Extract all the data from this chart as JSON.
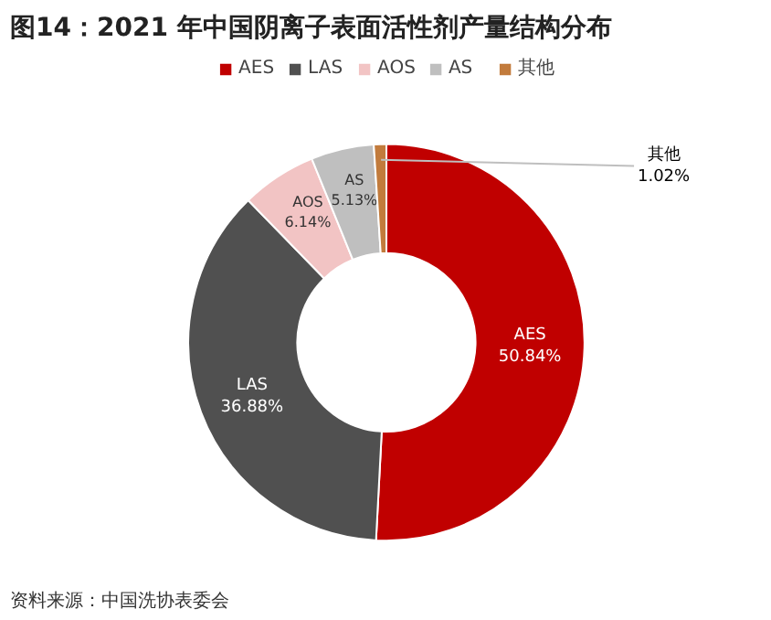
{
  "chart_data": {
    "type": "donut",
    "title": "图14：2021 年中国阴离子表面活性剂产量结构分布",
    "categories": [
      "AES",
      "LAS",
      "AOS",
      "AS",
      "其他"
    ],
    "values": [
      50.84,
      36.88,
      6.14,
      5.13,
      1.02
    ],
    "colors": [
      "#c00000",
      "#505050",
      "#f2c4c4",
      "#bfbfbf",
      "#c27b3c"
    ],
    "value_labels": [
      "50.84%",
      "36.88%",
      "6.14%",
      "5.13%",
      "1.02%"
    ],
    "legend": "top",
    "annotations": [
      "资料来源：中国洗协表委会"
    ]
  }
}
